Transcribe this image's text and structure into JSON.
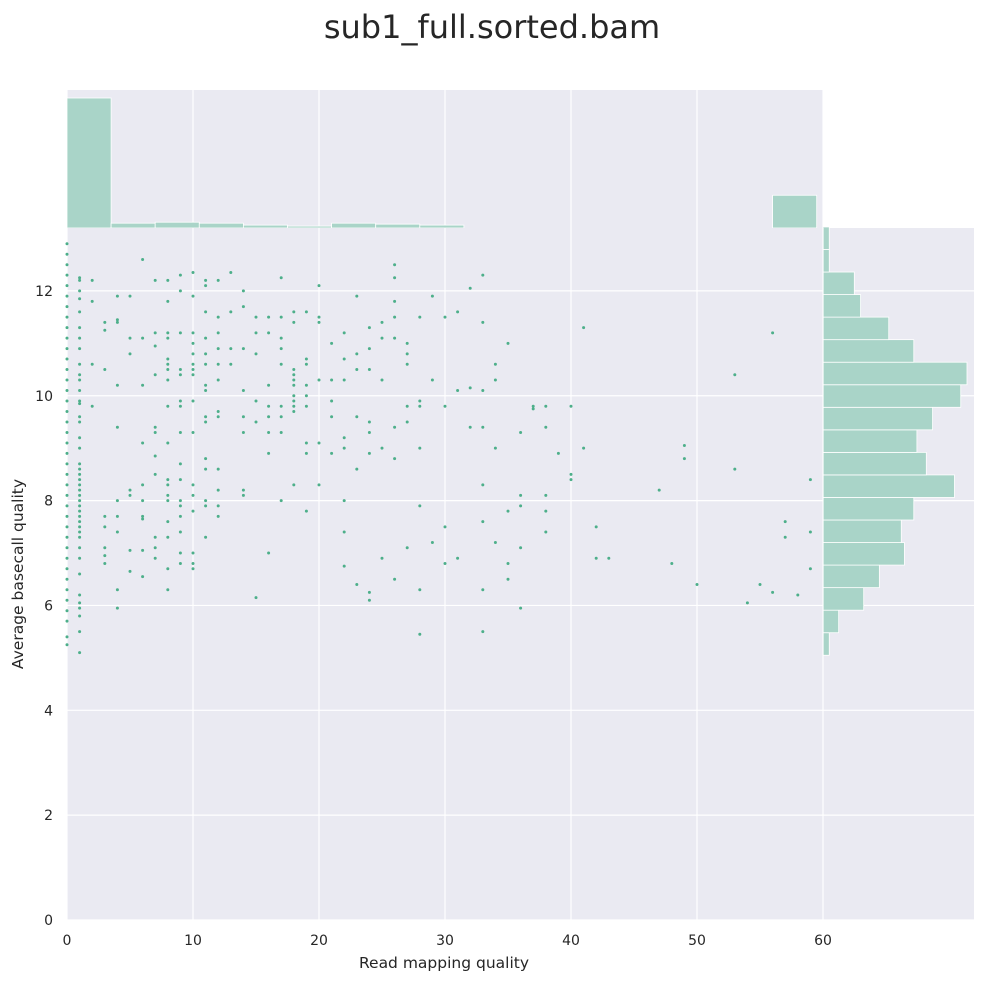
{
  "chart_data": {
    "type": "scatter",
    "title": "sub1_full.sorted.bam",
    "xlabel": "Read mapping quality",
    "ylabel": "Average basecall quality",
    "xlim": [
      0,
      60
    ],
    "ylim": [
      0,
      13.2
    ],
    "x_ticks": [
      "0",
      "10",
      "20",
      "30",
      "40",
      "50",
      "60"
    ],
    "y_ticks": [
      "0",
      "2",
      "4",
      "6",
      "8",
      "10",
      "12"
    ],
    "grid": true,
    "colors": {
      "points": "#4daf8a",
      "hist": "#a9d4c8",
      "background": "#eaeaf2",
      "grid": "#ffffff",
      "text": "#262626"
    },
    "points": [
      [
        0,
        12.9
      ],
      [
        0,
        12.7
      ],
      [
        0,
        12.5
      ],
      [
        0,
        12.3
      ],
      [
        0,
        12.1
      ],
      [
        0,
        11.9
      ],
      [
        0,
        11.7
      ],
      [
        0,
        11.5
      ],
      [
        0,
        11.3
      ],
      [
        0,
        11.1
      ],
      [
        0,
        10.9
      ],
      [
        0,
        10.7
      ],
      [
        0,
        10.5
      ],
      [
        0,
        10.3
      ],
      [
        0,
        10.1
      ],
      [
        0,
        9.9
      ],
      [
        0,
        9.7
      ],
      [
        0,
        9.5
      ],
      [
        0,
        9.3
      ],
      [
        0,
        9.1
      ],
      [
        0,
        8.9
      ],
      [
        0,
        8.7
      ],
      [
        0,
        8.5
      ],
      [
        0,
        8.3
      ],
      [
        0,
        8.1
      ],
      [
        0,
        7.9
      ],
      [
        0,
        7.7
      ],
      [
        0,
        7.5
      ],
      [
        0,
        7.3
      ],
      [
        0,
        7.1
      ],
      [
        0,
        6.9
      ],
      [
        0,
        6.7
      ],
      [
        0,
        6.5
      ],
      [
        0,
        6.3
      ],
      [
        0,
        6.1
      ],
      [
        0,
        5.9
      ],
      [
        0,
        5.7
      ],
      [
        0,
        5.4
      ],
      [
        0,
        5.25
      ],
      [
        1,
        12.25
      ],
      [
        1,
        12.2
      ],
      [
        1,
        12.0
      ],
      [
        1,
        11.85
      ],
      [
        1,
        11.6
      ],
      [
        1,
        11.3
      ],
      [
        1,
        11.1
      ],
      [
        1,
        10.9
      ],
      [
        1,
        10.6
      ],
      [
        1,
        10.4
      ],
      [
        1,
        10.3
      ],
      [
        1,
        10.1
      ],
      [
        1,
        9.9
      ],
      [
        1,
        9.85
      ],
      [
        1,
        9.6
      ],
      [
        1,
        9.5
      ],
      [
        1,
        9.2
      ],
      [
        1,
        9.0
      ],
      [
        1,
        8.7
      ],
      [
        1,
        8.6
      ],
      [
        1,
        8.5
      ],
      [
        1,
        8.4
      ],
      [
        1,
        8.3
      ],
      [
        1,
        8.2
      ],
      [
        1,
        8.1
      ],
      [
        1,
        8.0
      ],
      [
        1,
        7.9
      ],
      [
        1,
        7.8
      ],
      [
        1,
        7.7
      ],
      [
        1,
        7.6
      ],
      [
        1,
        7.5
      ],
      [
        1,
        7.4
      ],
      [
        1,
        7.3
      ],
      [
        1,
        7.1
      ],
      [
        1,
        6.9
      ],
      [
        1,
        6.6
      ],
      [
        1,
        6.2
      ],
      [
        1,
        6.05
      ],
      [
        1,
        5.95
      ],
      [
        1,
        5.8
      ],
      [
        1,
        5.5
      ],
      [
        1,
        5.1
      ],
      [
        2,
        12.2
      ],
      [
        2,
        11.8
      ],
      [
        2,
        10.6
      ],
      [
        2,
        9.8
      ],
      [
        3,
        11.4
      ],
      [
        3,
        11.25
      ],
      [
        3,
        10.5
      ],
      [
        3,
        7.7
      ],
      [
        3,
        7.5
      ],
      [
        3,
        7.1
      ],
      [
        3,
        6.95
      ],
      [
        3,
        6.8
      ],
      [
        4,
        11.9
      ],
      [
        4,
        11.4
      ],
      [
        4,
        11.45
      ],
      [
        4,
        10.2
      ],
      [
        4,
        9.4
      ],
      [
        4,
        8.0
      ],
      [
        4,
        7.7
      ],
      [
        4,
        7.4
      ],
      [
        4,
        6.3
      ],
      [
        4,
        5.95
      ],
      [
        5,
        11.9
      ],
      [
        5,
        11.1
      ],
      [
        5,
        10.8
      ],
      [
        5,
        8.2
      ],
      [
        5,
        8.1
      ],
      [
        5,
        7.05
      ],
      [
        5,
        6.65
      ],
      [
        6,
        12.6
      ],
      [
        6,
        11.1
      ],
      [
        6,
        10.2
      ],
      [
        6,
        9.1
      ],
      [
        6,
        8.3
      ],
      [
        6,
        8.0
      ],
      [
        6,
        7.7
      ],
      [
        6,
        7.65
      ],
      [
        6,
        7.05
      ],
      [
        6,
        6.55
      ],
      [
        7,
        12.2
      ],
      [
        7,
        11.2
      ],
      [
        7,
        10.95
      ],
      [
        7,
        10.4
      ],
      [
        7,
        9.4
      ],
      [
        7,
        9.3
      ],
      [
        7,
        8.85
      ],
      [
        7,
        8.5
      ],
      [
        7,
        7.3
      ],
      [
        7,
        7.1
      ],
      [
        7,
        6.9
      ],
      [
        8,
        12.2
      ],
      [
        8,
        11.8
      ],
      [
        8,
        11.2
      ],
      [
        8,
        11.1
      ],
      [
        8,
        10.7
      ],
      [
        8,
        10.6
      ],
      [
        8,
        10.5
      ],
      [
        8,
        10.3
      ],
      [
        8,
        9.8
      ],
      [
        8,
        9.1
      ],
      [
        8,
        8.4
      ],
      [
        8,
        8.3
      ],
      [
        8,
        8.1
      ],
      [
        8,
        8.0
      ],
      [
        8,
        7.6
      ],
      [
        8,
        7.3
      ],
      [
        8,
        6.7
      ],
      [
        8,
        6.3
      ],
      [
        9,
        12.3
      ],
      [
        9,
        12.0
      ],
      [
        9,
        11.2
      ],
      [
        9,
        10.5
      ],
      [
        9,
        10.4
      ],
      [
        9,
        9.9
      ],
      [
        9,
        9.8
      ],
      [
        9,
        9.3
      ],
      [
        9,
        8.7
      ],
      [
        9,
        8.4
      ],
      [
        9,
        8.0
      ],
      [
        9,
        7.9
      ],
      [
        9,
        7.7
      ],
      [
        9,
        7.4
      ],
      [
        9,
        7.0
      ],
      [
        9,
        6.8
      ],
      [
        10,
        12.35
      ],
      [
        10,
        11.9
      ],
      [
        10,
        11.2
      ],
      [
        10,
        11.0
      ],
      [
        10,
        10.8
      ],
      [
        10,
        10.6
      ],
      [
        10,
        10.5
      ],
      [
        10,
        10.4
      ],
      [
        10,
        9.9
      ],
      [
        10,
        9.3
      ],
      [
        10,
        8.3
      ],
      [
        10,
        8.1
      ],
      [
        10,
        7.8
      ],
      [
        10,
        7.0
      ],
      [
        10,
        6.8
      ],
      [
        10,
        6.7
      ],
      [
        11,
        12.2
      ],
      [
        11,
        12.1
      ],
      [
        11,
        11.6
      ],
      [
        11,
        11.1
      ],
      [
        11,
        10.8
      ],
      [
        11,
        10.6
      ],
      [
        11,
        10.2
      ],
      [
        11,
        10.1
      ],
      [
        11,
        9.6
      ],
      [
        11,
        9.5
      ],
      [
        11,
        8.8
      ],
      [
        11,
        8.6
      ],
      [
        11,
        8.0
      ],
      [
        11,
        7.9
      ],
      [
        11,
        7.3
      ],
      [
        12,
        12.2
      ],
      [
        12,
        11.5
      ],
      [
        12,
        11.2
      ],
      [
        12,
        10.9
      ],
      [
        12,
        10.6
      ],
      [
        12,
        10.3
      ],
      [
        12,
        9.7
      ],
      [
        12,
        9.6
      ],
      [
        12,
        8.6
      ],
      [
        12,
        8.2
      ],
      [
        12,
        7.9
      ],
      [
        12,
        7.7
      ],
      [
        13,
        12.35
      ],
      [
        13,
        11.6
      ],
      [
        13,
        10.9
      ],
      [
        13,
        10.6
      ],
      [
        14,
        12.0
      ],
      [
        14,
        11.7
      ],
      [
        14,
        10.9
      ],
      [
        14,
        10.1
      ],
      [
        14,
        9.6
      ],
      [
        14,
        9.3
      ],
      [
        14,
        8.2
      ],
      [
        14,
        8.1
      ],
      [
        15,
        11.5
      ],
      [
        15,
        11.2
      ],
      [
        15,
        10.8
      ],
      [
        15,
        9.9
      ],
      [
        15,
        9.5
      ],
      [
        15,
        6.15
      ],
      [
        16,
        11.5
      ],
      [
        16,
        11.2
      ],
      [
        16,
        10.2
      ],
      [
        16,
        9.8
      ],
      [
        16,
        9.6
      ],
      [
        16,
        9.3
      ],
      [
        16,
        8.9
      ],
      [
        16,
        7.0
      ],
      [
        17,
        12.25
      ],
      [
        17,
        11.5
      ],
      [
        17,
        11.1
      ],
      [
        17,
        10.9
      ],
      [
        17,
        10.6
      ],
      [
        17,
        9.8
      ],
      [
        17,
        9.6
      ],
      [
        17,
        9.3
      ],
      [
        17,
        8.0
      ],
      [
        18,
        11.6
      ],
      [
        18,
        11.4
      ],
      [
        18,
        10.5
      ],
      [
        18,
        10.4
      ],
      [
        18,
        10.3
      ],
      [
        18,
        10.2
      ],
      [
        18,
        10.0
      ],
      [
        18,
        9.9
      ],
      [
        18,
        9.8
      ],
      [
        18,
        9.7
      ],
      [
        18,
        8.3
      ],
      [
        19,
        11.6
      ],
      [
        19,
        10.7
      ],
      [
        19,
        10.6
      ],
      [
        19,
        10.2
      ],
      [
        19,
        10.0
      ],
      [
        19,
        9.8
      ],
      [
        19,
        9.1
      ],
      [
        19,
        8.9
      ],
      [
        19,
        7.8
      ],
      [
        20,
        12.1
      ],
      [
        20,
        11.5
      ],
      [
        20,
        11.4
      ],
      [
        20,
        10.3
      ],
      [
        20,
        9.1
      ],
      [
        20,
        8.3
      ],
      [
        21,
        11.0
      ],
      [
        21,
        10.3
      ],
      [
        21,
        9.9
      ],
      [
        21,
        9.6
      ],
      [
        21,
        8.9
      ],
      [
        22,
        11.2
      ],
      [
        22,
        10.7
      ],
      [
        22,
        10.3
      ],
      [
        22,
        9.2
      ],
      [
        22,
        9.0
      ],
      [
        22,
        8.0
      ],
      [
        22,
        7.4
      ],
      [
        22,
        6.75
      ],
      [
        23,
        11.9
      ],
      [
        23,
        10.8
      ],
      [
        23,
        10.5
      ],
      [
        23,
        9.6
      ],
      [
        23,
        8.6
      ],
      [
        23,
        6.4
      ],
      [
        24,
        11.3
      ],
      [
        24,
        10.9
      ],
      [
        24,
        10.5
      ],
      [
        24,
        9.5
      ],
      [
        24,
        9.3
      ],
      [
        24,
        8.9
      ],
      [
        24,
        6.25
      ],
      [
        24,
        6.1
      ],
      [
        25,
        11.4
      ],
      [
        25,
        11.1
      ],
      [
        25,
        10.3
      ],
      [
        25,
        9.0
      ],
      [
        25,
        6.9
      ],
      [
        26,
        12.5
      ],
      [
        26,
        12.25
      ],
      [
        26,
        11.8
      ],
      [
        26,
        11.5
      ],
      [
        26,
        11.1
      ],
      [
        26,
        9.4
      ],
      [
        26,
        8.8
      ],
      [
        26,
        6.5
      ],
      [
        27,
        11.0
      ],
      [
        27,
        10.8
      ],
      [
        27,
        10.6
      ],
      [
        27,
        9.8
      ],
      [
        27,
        9.5
      ],
      [
        27,
        7.1
      ],
      [
        28,
        11.5
      ],
      [
        28,
        9.9
      ],
      [
        28,
        9.8
      ],
      [
        28,
        9.0
      ],
      [
        28,
        7.9
      ],
      [
        28,
        6.3
      ],
      [
        28,
        5.45
      ],
      [
        29,
        11.9
      ],
      [
        29,
        10.3
      ],
      [
        29,
        7.2
      ],
      [
        30,
        11.5
      ],
      [
        30,
        9.8
      ],
      [
        30,
        7.5
      ],
      [
        30,
        6.8
      ],
      [
        31,
        11.6
      ],
      [
        31,
        10.1
      ],
      [
        31,
        6.9
      ],
      [
        32,
        12.05
      ],
      [
        32,
        10.15
      ],
      [
        32,
        9.4
      ],
      [
        33,
        12.3
      ],
      [
        33,
        11.4
      ],
      [
        33,
        10.1
      ],
      [
        33,
        9.4
      ],
      [
        33,
        8.3
      ],
      [
        33,
        7.6
      ],
      [
        33,
        6.3
      ],
      [
        33,
        5.5
      ],
      [
        34,
        10.6
      ],
      [
        34,
        10.3
      ],
      [
        34,
        9.0
      ],
      [
        34,
        7.2
      ],
      [
        35,
        11.0
      ],
      [
        35,
        7.8
      ],
      [
        35,
        6.8
      ],
      [
        35,
        6.5
      ],
      [
        36,
        9.3
      ],
      [
        36,
        8.1
      ],
      [
        36,
        7.9
      ],
      [
        36,
        7.1
      ],
      [
        36,
        5.95
      ],
      [
        37,
        9.8
      ],
      [
        37,
        9.75
      ],
      [
        38,
        9.8
      ],
      [
        38,
        9.4
      ],
      [
        38,
        8.1
      ],
      [
        38,
        7.8
      ],
      [
        38,
        7.4
      ],
      [
        39,
        8.9
      ],
      [
        40,
        9.8
      ],
      [
        40,
        8.5
      ],
      [
        40,
        8.4
      ],
      [
        41,
        11.3
      ],
      [
        41,
        9.0
      ],
      [
        42,
        7.5
      ],
      [
        42,
        6.9
      ],
      [
        43,
        6.9
      ],
      [
        47,
        8.2
      ],
      [
        48,
        6.8
      ],
      [
        49,
        9.05
      ],
      [
        49,
        8.8
      ],
      [
        50,
        6.4
      ],
      [
        53,
        10.4
      ],
      [
        53,
        8.6
      ],
      [
        54,
        6.05
      ],
      [
        55,
        6.4
      ],
      [
        56,
        11.2
      ],
      [
        56,
        6.25
      ],
      [
        57,
        7.6
      ],
      [
        57,
        7.3
      ],
      [
        58,
        6.2
      ],
      [
        59,
        8.4
      ],
      [
        59,
        7.4
      ],
      [
        59,
        6.7
      ]
    ],
    "x_histogram": {
      "bin_edges": [
        0,
        3.5,
        7,
        10.5,
        14,
        17.5,
        21,
        24.5,
        28,
        31.5,
        35,
        38.5,
        42,
        45.5,
        49,
        52.5,
        56,
        59.5
      ],
      "counts": [
        135,
        5,
        6,
        5,
        3,
        2,
        5,
        4,
        3,
        0,
        0,
        0,
        0,
        0,
        0,
        0,
        34
      ]
    },
    "y_histogram": {
      "bin_edges": [
        5.05,
        5.48,
        5.91,
        6.34,
        6.77,
        7.2,
        7.63,
        8.06,
        8.49,
        8.92,
        9.35,
        9.78,
        10.21,
        10.64,
        11.07,
        11.5,
        11.93,
        12.36,
        12.79,
        13.22
      ],
      "counts": [
        2,
        5,
        13,
        18,
        26,
        25,
        29,
        42,
        33,
        30,
        35,
        44,
        46,
        29,
        21,
        12,
        10,
        2,
        2
      ]
    }
  }
}
